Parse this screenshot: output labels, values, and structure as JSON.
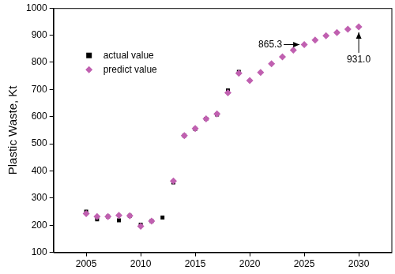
{
  "chart_data": {
    "type": "scatter",
    "y_label": "Plastic Waste, Kt",
    "x": [
      2005,
      2006,
      2007,
      2008,
      2009,
      2010,
      2011,
      2012,
      2013,
      2014,
      2015,
      2016,
      2017,
      2018,
      2019,
      2020,
      2021,
      2022,
      2023,
      2024,
      2025,
      2026,
      2027,
      2028,
      2029,
      2030
    ],
    "series": [
      {
        "name": "actual value",
        "color": "#000000",
        "marker": "square",
        "values": [
          250,
          222,
          232,
          218,
          235,
          202,
          215,
          228,
          358,
          530,
          555,
          592,
          608,
          697,
          765,
          null,
          null,
          null,
          null,
          null,
          null,
          null,
          null,
          null,
          null,
          null
        ]
      },
      {
        "name": "predict value",
        "color": "#c060b0",
        "marker": "diamond",
        "values": [
          243,
          232,
          232,
          236,
          235,
          196,
          215,
          null,
          363,
          530,
          556,
          592,
          610,
          688,
          760,
          733,
          763,
          795,
          820,
          845,
          865.3,
          882,
          898,
          910,
          922,
          931.0
        ]
      }
    ],
    "annotations": [
      {
        "text": "865.3",
        "x": 2025,
        "y": 865.3
      },
      {
        "text": "931.0",
        "x": 2030,
        "y": 931.0
      }
    ],
    "xlim": [
      2002,
      2033
    ],
    "ylim": [
      100,
      1000
    ],
    "xticks": [
      2005,
      2010,
      2015,
      2020,
      2025,
      2030
    ],
    "yticks": [
      100,
      200,
      300,
      400,
      500,
      600,
      700,
      800,
      900,
      1000
    ],
    "grid": false,
    "legend": "upper left"
  }
}
